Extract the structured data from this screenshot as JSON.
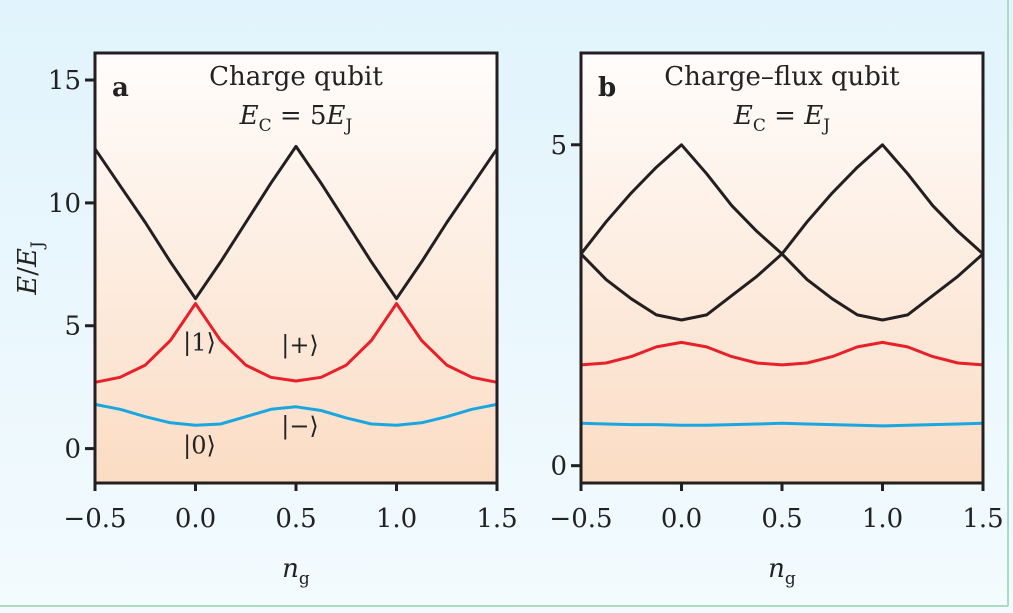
{
  "chart_data": [
    {
      "type": "line",
      "panel_label": "a",
      "title": "Charge qubit",
      "subtitle_parts": {
        "E1": "E",
        "s1": "C",
        "mid": " = 5",
        "E2": "E",
        "s2": "J"
      },
      "xlabel_parts": {
        "main": "n",
        "sub": "g"
      },
      "ylabel_parts": {
        "E1": "E",
        "slash": "/",
        "E2": "E",
        "sub": "J"
      },
      "xlim": [
        -0.5,
        1.5
      ],
      "ylim": [
        -1.4,
        16.1
      ],
      "xticks": [
        "−0.5",
        "0.0",
        "0.5",
        "1.0",
        "1.5"
      ],
      "xtick_values": [
        -0.5,
        0,
        0.5,
        1,
        1.5
      ],
      "yticks": [
        "0",
        "5",
        "10",
        "15"
      ],
      "ytick_values": [
        0,
        5,
        10,
        15
      ],
      "x": [
        -0.5,
        -0.375,
        -0.25,
        -0.125,
        0,
        0.125,
        0.25,
        0.375,
        0.5,
        0.625,
        0.75,
        0.875,
        1,
        1.125,
        1.25,
        1.375,
        1.5
      ],
      "series": [
        {
          "name": "level-2",
          "color": "#231f20",
          "values": [
            12.2,
            10.7,
            9.2,
            7.6,
            6.1,
            7.6,
            9.2,
            10.8,
            12.3,
            10.8,
            9.2,
            7.6,
            6.1,
            7.6,
            9.2,
            10.7,
            12.2
          ]
        },
        {
          "name": "level-1",
          "color": "#e8202a",
          "values": [
            2.7,
            2.9,
            3.4,
            4.4,
            5.9,
            4.4,
            3.4,
            2.9,
            2.75,
            2.9,
            3.4,
            4.4,
            5.9,
            4.4,
            3.4,
            2.9,
            2.7
          ]
        },
        {
          "name": "level-0",
          "color": "#1aa7e0",
          "values": [
            1.8,
            1.6,
            1.3,
            1.05,
            0.95,
            1.0,
            1.3,
            1.6,
            1.7,
            1.55,
            1.25,
            1.0,
            0.95,
            1.05,
            1.3,
            1.6,
            1.8
          ]
        }
      ],
      "annotations": [
        {
          "text": "|1⟩",
          "x": 0.02,
          "y": 4.0
        },
        {
          "text": "|+⟩",
          "x": 0.52,
          "y": 3.9
        },
        {
          "text": "|0⟩",
          "x": 0.02,
          "y": -0.2
        },
        {
          "text": "|−⟩",
          "x": 0.52,
          "y": 0.6
        }
      ]
    },
    {
      "type": "line",
      "panel_label": "b",
      "title": "Charge–flux qubit",
      "subtitle_parts": {
        "E1": "E",
        "s1": "C",
        "mid": " = ",
        "E2": "E",
        "s2": "J"
      },
      "xlabel_parts": {
        "main": "n",
        "sub": "g"
      },
      "xlim": [
        -0.5,
        1.5
      ],
      "ylim": [
        -0.27,
        6.43
      ],
      "xticks": [
        "−0.5",
        "0.0",
        "0.5",
        "1.0",
        "1.5"
      ],
      "xtick_values": [
        -0.5,
        0,
        0.5,
        1,
        1.5
      ],
      "yticks": [
        "0",
        "5"
      ],
      "ytick_values": [
        0,
        5
      ],
      "x": [
        -0.5,
        -0.375,
        -0.25,
        -0.125,
        0,
        0.125,
        0.25,
        0.375,
        0.5,
        0.625,
        0.75,
        0.875,
        1,
        1.125,
        1.25,
        1.375,
        1.5
      ],
      "series": [
        {
          "name": "level-3",
          "color": "#231f20",
          "values": [
            3.3,
            3.8,
            4.25,
            4.65,
            5.0,
            4.55,
            4.05,
            3.65,
            3.3,
            3.8,
            4.25,
            4.65,
            5.0,
            4.55,
            4.05,
            3.65,
            3.3
          ]
        },
        {
          "name": "level-2",
          "color": "#231f20",
          "values": [
            3.3,
            2.9,
            2.6,
            2.35,
            2.27,
            2.35,
            2.65,
            2.95,
            3.3,
            2.9,
            2.6,
            2.35,
            2.27,
            2.35,
            2.65,
            2.95,
            3.3
          ]
        },
        {
          "name": "level-1",
          "color": "#e8202a",
          "values": [
            1.57,
            1.6,
            1.7,
            1.85,
            1.92,
            1.85,
            1.7,
            1.6,
            1.57,
            1.6,
            1.7,
            1.85,
            1.92,
            1.85,
            1.7,
            1.6,
            1.57
          ]
        },
        {
          "name": "level-0",
          "color": "#1aa7e0",
          "values": [
            0.66,
            0.65,
            0.64,
            0.64,
            0.63,
            0.63,
            0.64,
            0.65,
            0.66,
            0.65,
            0.64,
            0.63,
            0.62,
            0.63,
            0.64,
            0.65,
            0.66
          ]
        }
      ]
    }
  ]
}
